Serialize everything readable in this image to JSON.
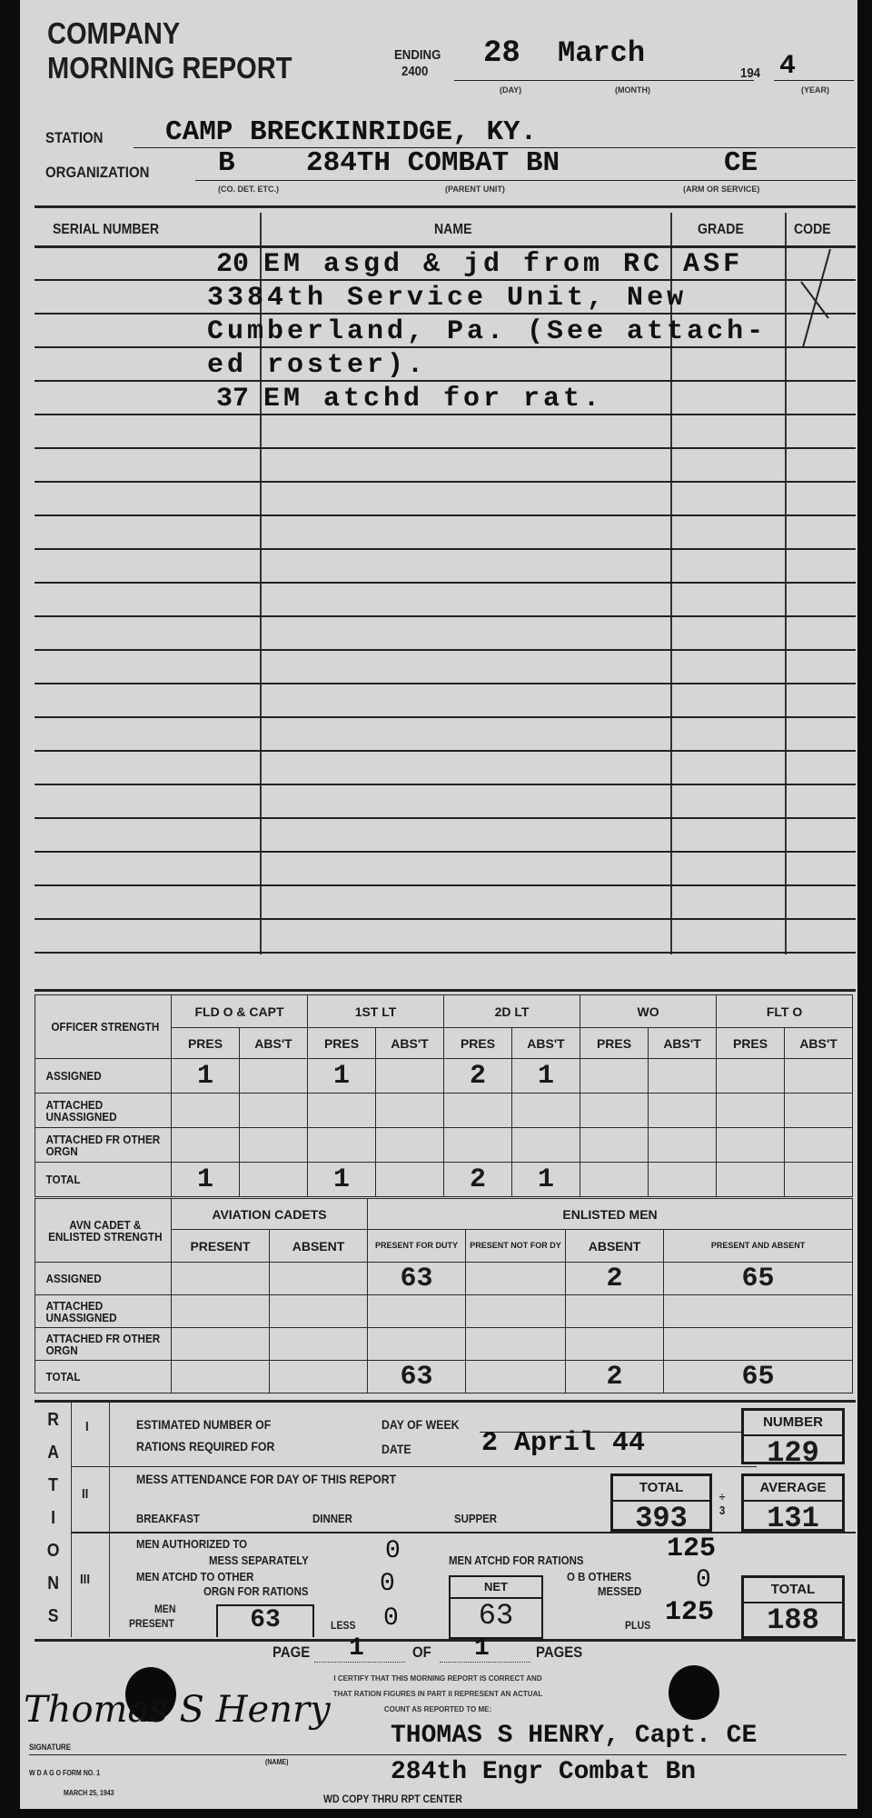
{
  "header": {
    "title_line1": "COMPANY",
    "title_line2": "MORNING REPORT",
    "ending_label": "ENDING",
    "ending_time": "2400",
    "day": "28",
    "month": "March",
    "year_prefix": "194",
    "year_digit": "4",
    "day_caption": "(DAY)",
    "month_caption": "(MONTH)",
    "year_caption": "(YEAR)",
    "station_label": "STATION",
    "station": "CAMP BRECKINRIDGE, KY.",
    "organization_label": "ORGANIZATION",
    "company": "B",
    "parent_unit": "284TH COMBAT BN",
    "arm_service": "CE",
    "co_caption": "(CO. DET. ETC.)",
    "parent_caption": "(PARENT UNIT)",
    "arm_caption": "(ARM OR SERVICE)"
  },
  "narrative": {
    "columns": [
      "SERIAL NUMBER",
      "NAME",
      "GRADE",
      "CODE"
    ],
    "rows": [
      {
        "serial": "20",
        "text": "EM asgd & jd from RC ASF"
      },
      {
        "serial": "",
        "text": "3384th Service Unit, New"
      },
      {
        "serial": "",
        "text": "Cumberland, Pa. (See attach-"
      },
      {
        "serial": "",
        "text": "ed roster)."
      },
      {
        "serial": "37",
        "text": "EM atchd for rat."
      }
    ],
    "code_mark": "X"
  },
  "officer_strength": {
    "title": "OFFICER STRENGTH",
    "groups": [
      "FLD O & CAPT",
      "1ST LT",
      "2D LT",
      "WO",
      "FLT O"
    ],
    "sub": [
      "PRES",
      "ABS'T"
    ],
    "rows": [
      {
        "label": "ASSIGNED",
        "values": [
          "1",
          "",
          "1",
          "",
          "2",
          "1",
          "",
          "",
          "",
          ""
        ]
      },
      {
        "label": "ATTACHED UNASSIGNED",
        "values": [
          "",
          "",
          "",
          "",
          "",
          "",
          "",
          "",
          "",
          ""
        ]
      },
      {
        "label": "ATTACHED FR OTHER ORGN",
        "values": [
          "",
          "",
          "",
          "",
          "",
          "",
          "",
          "",
          "",
          ""
        ]
      },
      {
        "label": "TOTAL",
        "values": [
          "1",
          "",
          "1",
          "",
          "2",
          "1",
          "",
          "",
          "",
          ""
        ]
      }
    ]
  },
  "enlisted_strength": {
    "title": "AVN CADET & ENLISTED STRENGTH",
    "group_cadets": "AVIATION CADETS",
    "group_enlisted": "ENLISTED MEN",
    "sub": [
      "PRESENT",
      "ABSENT",
      "PRESENT FOR DUTY",
      "PRESENT NOT FOR DY",
      "ABSENT",
      "PRESENT AND ABSENT"
    ],
    "rows": [
      {
        "label": "ASSIGNED",
        "values": [
          "",
          "",
          "63",
          "",
          "2",
          "65"
        ]
      },
      {
        "label": "ATTACHED UNASSIGNED",
        "values": [
          "",
          "",
          "",
          "",
          "",
          ""
        ]
      },
      {
        "label": "ATTACHED FR OTHER ORGN",
        "values": [
          "",
          "",
          "",
          "",
          "",
          ""
        ]
      },
      {
        "label": "TOTAL",
        "values": [
          "",
          "",
          "63",
          "",
          "2",
          "65"
        ]
      }
    ]
  },
  "rations": {
    "side_letters": [
      "R",
      "A",
      "T",
      "I",
      "O",
      "N",
      "S"
    ],
    "part1": {
      "numeral": "I",
      "label1": "ESTIMATED NUMBER OF",
      "label2": "RATIONS REQUIRED FOR",
      "day_of_week_label": "DAY OF WEEK",
      "date_label": "DATE",
      "date": "2 April 44",
      "number_label": "NUMBER",
      "number": "129"
    },
    "part2": {
      "numeral": "II",
      "label": "MESS ATTENDANCE FOR DAY OF THIS REPORT",
      "breakfast": "BREAKFAST",
      "dinner": "DINNER",
      "supper": "SUPPER",
      "total_label": "TOTAL",
      "total": "393",
      "divide": "÷ 3",
      "average_label": "AVERAGE",
      "average": "131"
    },
    "part3": {
      "numeral": "III",
      "auth_label1": "MEN AUTHORIZED TO",
      "auth_label2": "MESS SEPARATELY",
      "auth_value": "0",
      "atchd_rations_label": "MEN ATCHD FOR RATIONS",
      "atchd_rations_value": "125",
      "other_label1": "MEN ATCHD TO OTHER",
      "other_label2": "ORGN FOR RATIONS",
      "other_value": "0",
      "ob_label1": "O B OTHERS",
      "ob_label2": "MESSED",
      "ob_value": "0",
      "men_present_label1": "MEN",
      "men_present_label2": "PRESENT",
      "men_present": "63",
      "less_label": "LESS",
      "less_value": "0",
      "net_label": "NET",
      "net": "63",
      "plus_label": "PLUS",
      "plus_value": "125",
      "total_label": "TOTAL",
      "total": "188"
    }
  },
  "footer": {
    "page_label": "PAGE",
    "page": "1",
    "of_label": "OF",
    "pages": "1",
    "pages_label": "PAGES",
    "certify1": "I CERTIFY THAT THIS MORNING REPORT IS CORRECT AND",
    "certify2": "THAT RATION FIGURES IN PART II REPRESENT AN ACTUAL",
    "certify3": "COUNT AS REPORTED TO ME:",
    "signature": "Thomas S Henry",
    "signature_label": "SIGNATURE",
    "name_label": "(NAME)",
    "typed_name": "THOMAS S HENRY, Capt. CE",
    "typed_unit": "284th Engr Combat Bn",
    "form_no": "W D  A G O  FORM NO. 1",
    "form_date": "MARCH 25, 1943",
    "wd_copy": "WD COPY THRU RPT CENTER"
  }
}
